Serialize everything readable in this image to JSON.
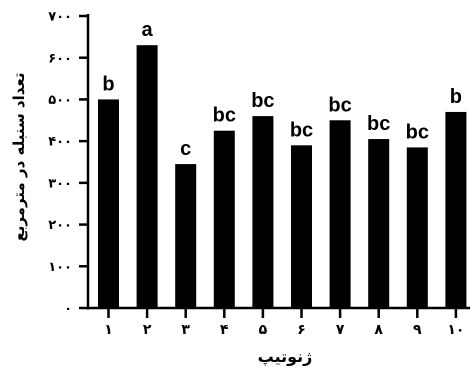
{
  "chart_data": {
    "type": "bar",
    "xlabel": "ژنوتیپ",
    "ylabel": "تعداد سنبله در مترمربع",
    "categories": [
      "۱",
      "۲",
      "۳",
      "۴",
      "۵",
      "۶",
      "۷",
      "۸",
      "۹",
      "۱۰"
    ],
    "values": [
      500,
      630,
      345,
      425,
      460,
      390,
      450,
      405,
      385,
      470
    ],
    "annotations": [
      "b",
      "a",
      "c",
      "bc",
      "bc",
      "bc",
      "bc",
      "bc",
      "bc",
      "b"
    ],
    "ylim": [
      0,
      700
    ],
    "yticks": [
      0,
      100,
      200,
      300,
      400,
      500,
      600,
      700
    ],
    "ytick_labels": [
      "۰",
      "۱۰۰",
      "۲۰۰",
      "۳۰۰",
      "۴۰۰",
      "۵۰۰",
      "۶۰۰",
      "۷۰۰"
    ],
    "grid": false,
    "bar_color": "#000000"
  }
}
